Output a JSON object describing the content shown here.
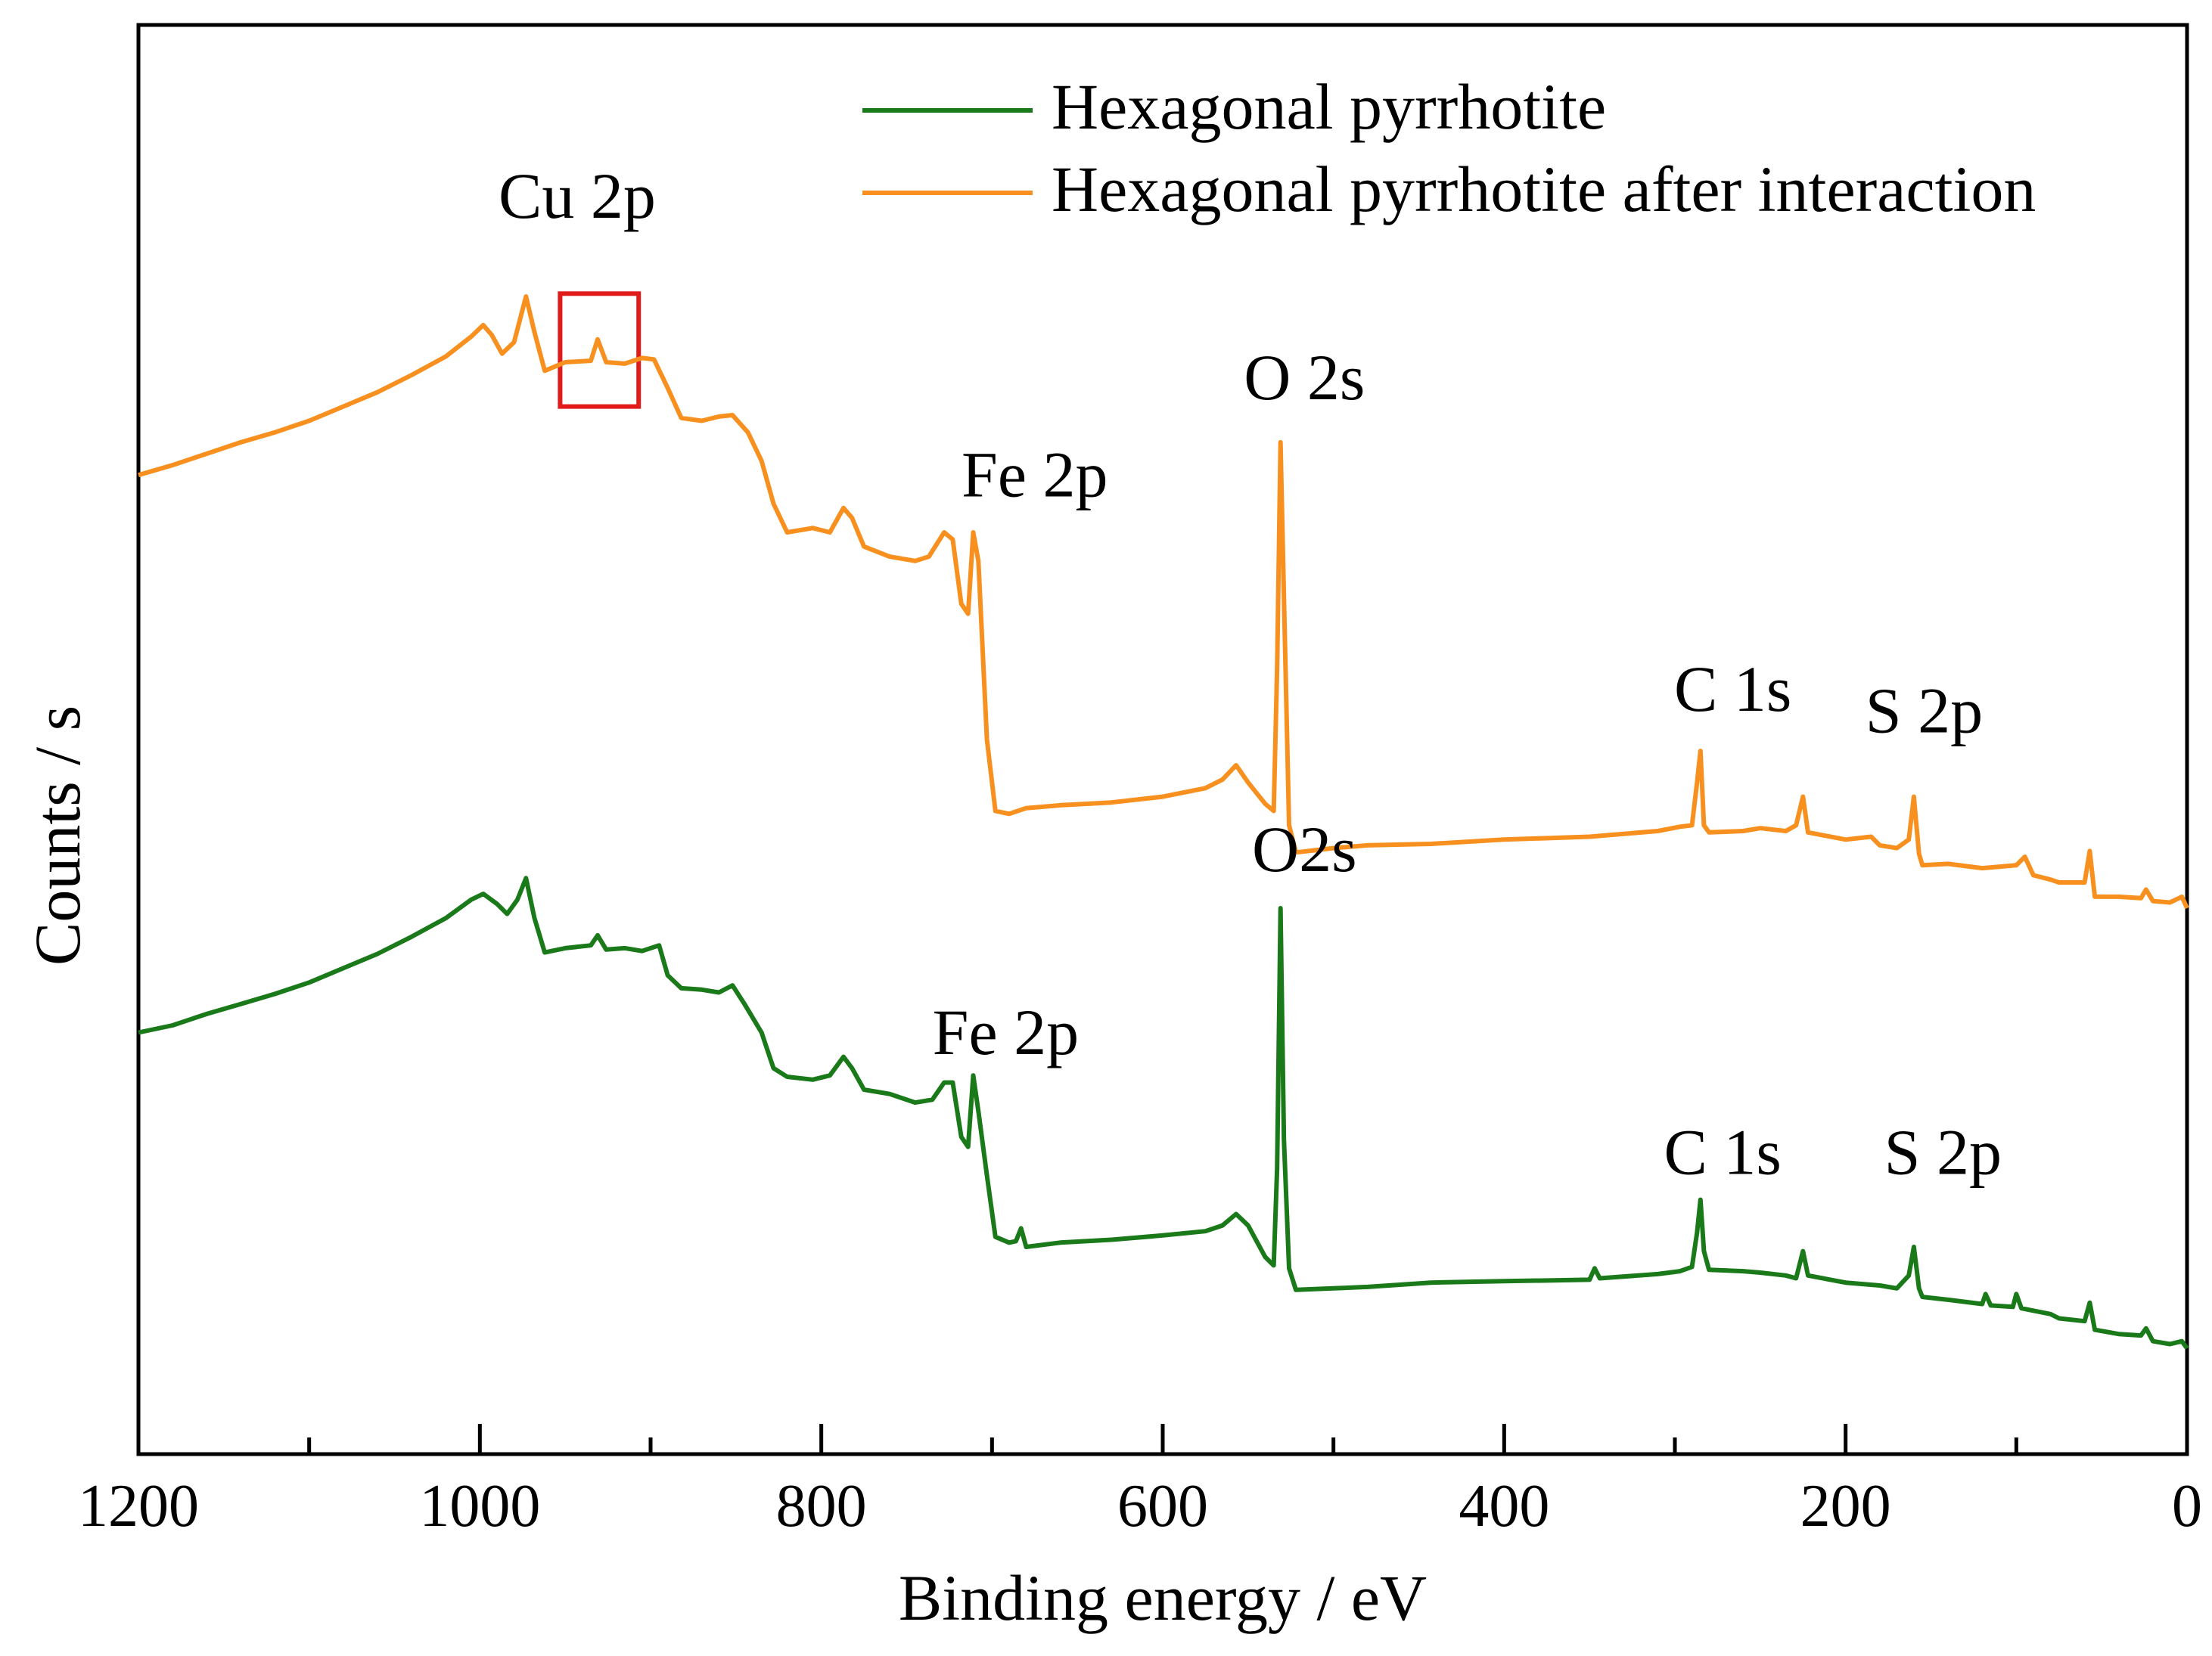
{
  "chart_data": {
    "type": "line",
    "title": "",
    "xlabel": "Binding energy / eV",
    "ylabel": "Counts / s",
    "xlim": [
      1200,
      0
    ],
    "x_reversed": true,
    "ylim": [
      0,
      100
    ],
    "y_units": "arbitrary (offset spectra, no y tick labels)",
    "x_ticks": [
      1200,
      1000,
      800,
      600,
      400,
      200,
      0
    ],
    "x_minor_ticks": [
      1100,
      900,
      700,
      500,
      300,
      100
    ],
    "legend_position": "top-right",
    "grid": false,
    "series": [
      {
        "name": "Hexagonal pyrrhotite",
        "color": "#1a7a1a",
        "points": [
          [
            1200,
            29.5
          ],
          [
            1180,
            30.0
          ],
          [
            1160,
            30.8
          ],
          [
            1140,
            31.5
          ],
          [
            1120,
            32.2
          ],
          [
            1100,
            33.0
          ],
          [
            1080,
            34.0
          ],
          [
            1060,
            35.0
          ],
          [
            1040,
            36.2
          ],
          [
            1020,
            37.5
          ],
          [
            1005,
            38.8
          ],
          [
            998,
            39.2
          ],
          [
            990,
            38.5
          ],
          [
            984,
            37.8
          ],
          [
            978,
            38.8
          ],
          [
            973,
            40.3
          ],
          [
            968,
            37.5
          ],
          [
            962,
            35.1
          ],
          [
            950,
            35.4
          ],
          [
            935,
            35.6
          ],
          [
            931,
            36.3
          ],
          [
            926,
            35.3
          ],
          [
            915,
            35.4
          ],
          [
            905,
            35.2
          ],
          [
            895,
            35.6
          ],
          [
            890,
            33.5
          ],
          [
            882,
            32.6
          ],
          [
            870,
            32.5
          ],
          [
            860,
            32.3
          ],
          [
            852,
            32.8
          ],
          [
            845,
            31.5
          ],
          [
            835,
            29.5
          ],
          [
            828,
            27.0
          ],
          [
            820,
            26.4
          ],
          [
            805,
            26.2
          ],
          [
            795,
            26.5
          ],
          [
            787,
            27.8
          ],
          [
            782,
            27.0
          ],
          [
            775,
            25.5
          ],
          [
            760,
            25.2
          ],
          [
            745,
            24.6
          ],
          [
            735,
            24.8
          ],
          [
            728,
            26.0
          ],
          [
            723,
            26.0
          ],
          [
            718,
            22.2
          ],
          [
            714,
            21.5
          ],
          [
            711,
            26.5
          ],
          [
            708,
            24.0
          ],
          [
            703,
            19.5
          ],
          [
            698,
            15.2
          ],
          [
            690,
            14.8
          ],
          [
            686,
            14.9
          ],
          [
            683,
            15.8
          ],
          [
            680,
            14.5
          ],
          [
            660,
            14.8
          ],
          [
            630,
            15.0
          ],
          [
            600,
            15.3
          ],
          [
            575,
            15.6
          ],
          [
            565,
            16.0
          ],
          [
            557,
            16.8
          ],
          [
            550,
            16.0
          ],
          [
            540,
            13.8
          ],
          [
            535,
            13.2
          ],
          [
            533,
            20.0
          ],
          [
            531,
            38.2
          ],
          [
            529,
            22.0
          ],
          [
            526,
            13.0
          ],
          [
            522,
            11.5
          ],
          [
            500,
            11.6
          ],
          [
            480,
            11.7
          ],
          [
            443,
            12.0
          ],
          [
            400,
            12.1
          ],
          [
            350,
            12.2
          ],
          [
            347,
            13.0
          ],
          [
            344,
            12.3
          ],
          [
            310,
            12.6
          ],
          [
            297,
            12.8
          ],
          [
            290,
            13.1
          ],
          [
            287,
            15.5
          ],
          [
            285,
            17.8
          ],
          [
            283,
            14.2
          ],
          [
            280,
            12.9
          ],
          [
            260,
            12.8
          ],
          [
            250,
            12.7
          ],
          [
            235,
            12.5
          ],
          [
            229,
            12.3
          ],
          [
            225,
            14.2
          ],
          [
            222,
            12.5
          ],
          [
            200,
            12.0
          ],
          [
            180,
            11.8
          ],
          [
            170,
            11.6
          ],
          [
            163,
            12.5
          ],
          [
            160,
            14.5
          ],
          [
            157,
            11.6
          ],
          [
            155,
            11.0
          ],
          [
            140,
            10.8
          ],
          [
            120,
            10.5
          ],
          [
            118,
            11.2
          ],
          [
            115,
            10.4
          ],
          [
            102,
            10.3
          ],
          [
            100,
            11.2
          ],
          [
            97,
            10.2
          ],
          [
            80,
            9.8
          ],
          [
            75,
            9.5
          ],
          [
            60,
            9.3
          ],
          [
            57,
            10.6
          ],
          [
            54,
            8.7
          ],
          [
            40,
            8.4
          ],
          [
            27,
            8.3
          ],
          [
            24,
            8.8
          ],
          [
            20,
            7.9
          ],
          [
            10,
            7.7
          ],
          [
            3,
            7.9
          ],
          [
            0,
            7.4
          ]
        ]
      },
      {
        "name": "Hexagonal pyrrhotite after interaction",
        "color": "#f7901e",
        "points": [
          [
            1200,
            68.5
          ],
          [
            1180,
            69.2
          ],
          [
            1160,
            70.0
          ],
          [
            1140,
            70.8
          ],
          [
            1120,
            71.5
          ],
          [
            1100,
            72.3
          ],
          [
            1080,
            73.3
          ],
          [
            1060,
            74.3
          ],
          [
            1040,
            75.5
          ],
          [
            1020,
            76.8
          ],
          [
            1005,
            78.2
          ],
          [
            998,
            79.0
          ],
          [
            993,
            78.3
          ],
          [
            987,
            77.0
          ],
          [
            980,
            77.8
          ],
          [
            973,
            81.0
          ],
          [
            968,
            78.5
          ],
          [
            962,
            75.8
          ],
          [
            950,
            76.4
          ],
          [
            935,
            76.5
          ],
          [
            931,
            78.0
          ],
          [
            926,
            76.4
          ],
          [
            915,
            76.3
          ],
          [
            905,
            76.7
          ],
          [
            898,
            76.6
          ],
          [
            890,
            74.6
          ],
          [
            882,
            72.5
          ],
          [
            870,
            72.3
          ],
          [
            860,
            72.6
          ],
          [
            852,
            72.7
          ],
          [
            843,
            71.5
          ],
          [
            835,
            69.5
          ],
          [
            828,
            66.5
          ],
          [
            820,
            64.5
          ],
          [
            805,
            64.8
          ],
          [
            795,
            64.5
          ],
          [
            787,
            66.2
          ],
          [
            782,
            65.5
          ],
          [
            775,
            63.5
          ],
          [
            760,
            62.8
          ],
          [
            745,
            62.5
          ],
          [
            737,
            62.8
          ],
          [
            728,
            64.5
          ],
          [
            723,
            64.0
          ],
          [
            718,
            59.5
          ],
          [
            714,
            58.8
          ],
          [
            711,
            64.5
          ],
          [
            708,
            62.5
          ],
          [
            703,
            50.0
          ],
          [
            698,
            45.0
          ],
          [
            690,
            44.8
          ],
          [
            680,
            45.2
          ],
          [
            660,
            45.4
          ],
          [
            630,
            45.6
          ],
          [
            600,
            46.0
          ],
          [
            575,
            46.6
          ],
          [
            565,
            47.2
          ],
          [
            557,
            48.2
          ],
          [
            550,
            47.0
          ],
          [
            540,
            45.5
          ],
          [
            535,
            45.0
          ],
          [
            533,
            55.0
          ],
          [
            531,
            70.8
          ],
          [
            529,
            60.0
          ],
          [
            526,
            44.0
          ],
          [
            522,
            42.1
          ],
          [
            500,
            42.4
          ],
          [
            480,
            42.6
          ],
          [
            443,
            42.7
          ],
          [
            400,
            43.0
          ],
          [
            350,
            43.2
          ],
          [
            310,
            43.6
          ],
          [
            297,
            43.9
          ],
          [
            290,
            44.0
          ],
          [
            287,
            47.0
          ],
          [
            285,
            49.2
          ],
          [
            283,
            44.0
          ],
          [
            280,
            43.5
          ],
          [
            260,
            43.6
          ],
          [
            250,
            43.8
          ],
          [
            235,
            43.6
          ],
          [
            229,
            44.0
          ],
          [
            225,
            46.0
          ],
          [
            222,
            43.5
          ],
          [
            200,
            43.0
          ],
          [
            185,
            43.2
          ],
          [
            180,
            42.6
          ],
          [
            170,
            42.4
          ],
          [
            163,
            43.0
          ],
          [
            160,
            46.0
          ],
          [
            157,
            42.0
          ],
          [
            155,
            41.2
          ],
          [
            140,
            41.3
          ],
          [
            120,
            41.0
          ],
          [
            100,
            41.2
          ],
          [
            95,
            41.8
          ],
          [
            90,
            40.5
          ],
          [
            80,
            40.2
          ],
          [
            75,
            40.0
          ],
          [
            60,
            40.0
          ],
          [
            57,
            42.2
          ],
          [
            54,
            39.0
          ],
          [
            40,
            39.0
          ],
          [
            27,
            38.9
          ],
          [
            24,
            39.5
          ],
          [
            20,
            38.7
          ],
          [
            10,
            38.6
          ],
          [
            3,
            39.0
          ],
          [
            0,
            38.2
          ]
        ]
      }
    ],
    "annotations": [
      {
        "id": "cu2p",
        "text": "Cu 2p",
        "x": 943,
        "y": 86.5,
        "anchor": "middle"
      },
      {
        "id": "o2s-top",
        "text": "O 2s",
        "x": 517,
        "y": 73.8,
        "anchor": "middle"
      },
      {
        "id": "fe2p-top",
        "text": "Fe 2p",
        "x": 675,
        "y": 67.0,
        "anchor": "middle"
      },
      {
        "id": "c1s-top",
        "text": "C 1s",
        "x": 266,
        "y": 52.0,
        "anchor": "middle"
      },
      {
        "id": "s2p-top",
        "text": "S 2p",
        "x": 154,
        "y": 50.5,
        "anchor": "middle"
      },
      {
        "id": "o2s-bottom",
        "text": "O2s",
        "x": 517,
        "y": 40.8,
        "anchor": "middle"
      },
      {
        "id": "fe2p-bottom",
        "text": "Fe 2p",
        "x": 692,
        "y": 28.0,
        "anchor": "middle"
      },
      {
        "id": "c1s-bottom",
        "text": "C 1s",
        "x": 272,
        "y": 19.6,
        "anchor": "middle"
      },
      {
        "id": "s2p-bottom",
        "text": "S 2p",
        "x": 143,
        "y": 19.6,
        "anchor": "middle"
      }
    ],
    "highlight_box": {
      "x_range": [
        953,
        907
      ],
      "y_range": [
        73.3,
        81.2
      ],
      "color": "#e11a1a"
    }
  }
}
